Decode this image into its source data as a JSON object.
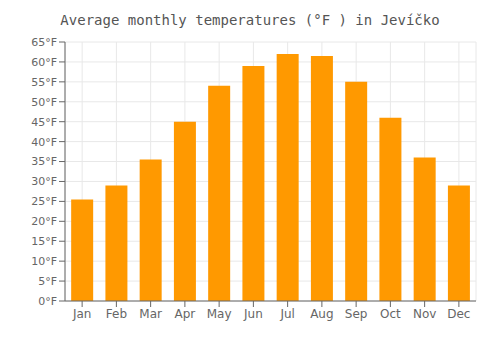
{
  "chart_data": {
    "type": "bar",
    "title": "Average monthly temperatures (°F ) in Jevíčko",
    "categories": [
      "Jan",
      "Feb",
      "Mar",
      "Apr",
      "May",
      "Jun",
      "Jul",
      "Aug",
      "Sep",
      "Oct",
      "Nov",
      "Dec"
    ],
    "values": [
      25.5,
      29.0,
      35.5,
      45.0,
      54.0,
      59.0,
      62.0,
      61.5,
      55.0,
      46.0,
      36.0,
      29.0
    ],
    "color": "#FF9900",
    "ylim": [
      0,
      65
    ],
    "yticks": [
      {
        "value": 0,
        "label": "0°F"
      },
      {
        "value": 5,
        "label": "5°F"
      },
      {
        "value": 10,
        "label": "10°F"
      },
      {
        "value": 15,
        "label": "15°F"
      },
      {
        "value": 20,
        "label": "20°F"
      },
      {
        "value": 25,
        "label": "25°F"
      },
      {
        "value": 30,
        "label": "30°F"
      },
      {
        "value": 35,
        "label": "35°F"
      },
      {
        "value": 40,
        "label": "40°F"
      },
      {
        "value": 45,
        "label": "45°F"
      },
      {
        "value": 50,
        "label": "50°F"
      },
      {
        "value": 55,
        "label": "55°F"
      },
      {
        "value": 60,
        "label": "60°F"
      },
      {
        "value": 65,
        "label": "65°F"
      }
    ],
    "grid": true
  }
}
